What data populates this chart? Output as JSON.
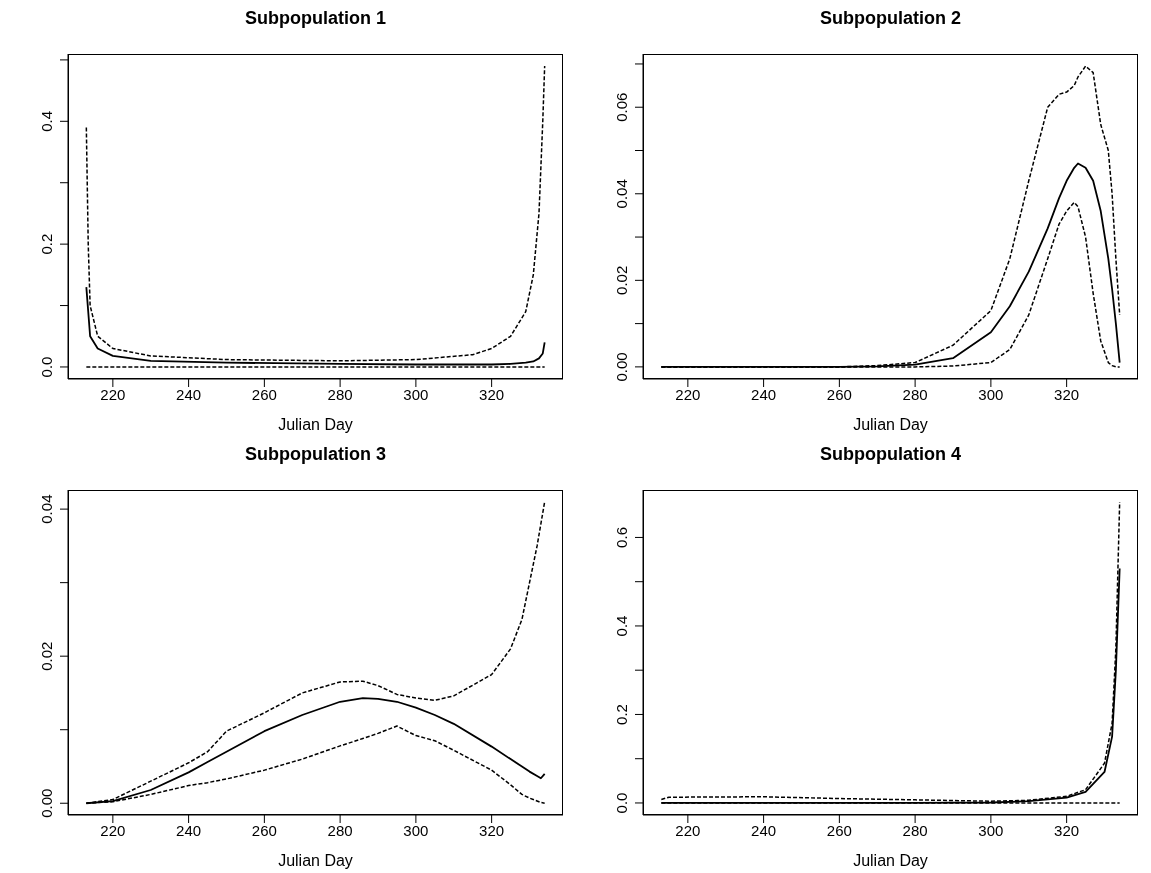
{
  "chart_data": [
    {
      "type": "line",
      "title": "Subpopulation 1",
      "xlabel": "Julian Day",
      "xlim": [
        208.16,
        338.84
      ],
      "xticks": [
        220,
        240,
        260,
        280,
        300,
        320
      ],
      "ylim": [
        -0.0196,
        0.5096
      ],
      "yticks": [
        {
          "value": 0,
          "label": "0.0"
        },
        {
          "value": 0.1,
          "label": null
        },
        {
          "value": 0.2,
          "label": "0.2"
        },
        {
          "value": 0.3,
          "label": null
        },
        {
          "value": 0.4,
          "label": "0.4"
        },
        {
          "value": 0.5,
          "label": null
        }
      ],
      "x": [
        213,
        213.5,
        214,
        216,
        220,
        230,
        250,
        280,
        300,
        315,
        320,
        325,
        329,
        331,
        332.5,
        333.5,
        334
      ],
      "series": [
        {
          "color": "#000000",
          "line_style": "solid",
          "values": [
            0.13,
            0.09,
            0.05,
            0.03,
            0.018,
            0.01,
            0.007,
            0.005,
            0.004,
            0.004,
            0.004,
            0.005,
            0.007,
            0.009,
            0.014,
            0.022,
            0.04
          ]
        },
        {
          "color": "#000000",
          "line_style": "dashed",
          "values": [
            0,
            0,
            0,
            0,
            0,
            0,
            0,
            0,
            0,
            0,
            0,
            0,
            0,
            0,
            0,
            0,
            0
          ]
        },
        {
          "color": "#000000",
          "line_style": "dashed",
          "values": [
            0.39,
            0.2,
            0.1,
            0.05,
            0.03,
            0.018,
            0.012,
            0.01,
            0.012,
            0.02,
            0.03,
            0.05,
            0.09,
            0.15,
            0.25,
            0.4,
            0.49
          ]
        }
      ]
    },
    {
      "type": "line",
      "title": "Subpopulation 2",
      "xlabel": "Julian Day",
      "xlim": [
        208.16,
        338.84
      ],
      "xticks": [
        220,
        240,
        260,
        280,
        300,
        320
      ],
      "ylim": [
        -0.0028,
        0.0723
      ],
      "yticks": [
        {
          "value": 0,
          "label": "0.00"
        },
        {
          "value": 0.01,
          "label": null
        },
        {
          "value": 0.02,
          "label": "0.02"
        },
        {
          "value": 0.03,
          "label": null
        },
        {
          "value": 0.04,
          "label": "0.04"
        },
        {
          "value": 0.05,
          "label": null
        },
        {
          "value": 0.06,
          "label": "0.06"
        },
        {
          "value": 0.07,
          "label": null
        }
      ],
      "x": [
        213,
        260,
        270,
        280,
        290,
        300,
        305,
        310,
        315,
        318,
        320,
        322,
        323,
        325,
        327,
        329,
        331,
        332,
        333,
        334
      ],
      "series": [
        {
          "color": "#000000",
          "line_style": "solid",
          "values": [
            0,
            0,
            0.0001,
            0.0005,
            0.002,
            0.008,
            0.014,
            0.022,
            0.032,
            0.039,
            0.043,
            0.046,
            0.047,
            0.046,
            0.043,
            0.036,
            0.025,
            0.018,
            0.01,
            0.001
          ]
        },
        {
          "color": "#000000",
          "line_style": "dashed",
          "values": [
            0,
            0,
            0,
            0,
            0.0002,
            0.001,
            0.004,
            0.012,
            0.025,
            0.033,
            0.036,
            0.038,
            0.037,
            0.03,
            0.017,
            0.006,
            0.001,
            0.0003,
            0,
            0
          ]
        },
        {
          "color": "#000000",
          "line_style": "dashed",
          "values": [
            0,
            0,
            0.0003,
            0.001,
            0.005,
            0.013,
            0.025,
            0.043,
            0.06,
            0.063,
            0.0635,
            0.065,
            0.067,
            0.0695,
            0.068,
            0.056,
            0.05,
            0.04,
            0.025,
            0.012
          ]
        }
      ]
    },
    {
      "type": "line",
      "title": "Subpopulation 3",
      "xlabel": "Julian Day",
      "xlim": [
        208.16,
        338.84
      ],
      "xticks": [
        220,
        240,
        260,
        280,
        300,
        320
      ],
      "ylim": [
        -0.0016,
        0.0426
      ],
      "yticks": [
        {
          "value": 0,
          "label": "0.00"
        },
        {
          "value": 0.01,
          "label": null
        },
        {
          "value": 0.02,
          "label": "0.02"
        },
        {
          "value": 0.03,
          "label": null
        },
        {
          "value": 0.04,
          "label": "0.04"
        }
      ],
      "x": [
        213,
        220,
        230,
        240,
        245,
        250,
        260,
        270,
        280,
        286,
        290,
        295,
        300,
        305,
        310,
        320,
        325,
        328,
        330,
        332,
        333,
        334
      ],
      "series": [
        {
          "color": "#000000",
          "line_style": "solid",
          "values": [
            0,
            0.0003,
            0.0018,
            0.0042,
            0.0056,
            0.007,
            0.0098,
            0.012,
            0.0138,
            0.0143,
            0.0142,
            0.0138,
            0.013,
            0.012,
            0.0108,
            0.0077,
            0.006,
            0.005,
            0.0043,
            0.0037,
            0.0034,
            0.004
          ]
        },
        {
          "color": "#000000",
          "line_style": "dashed",
          "values": [
            0,
            0.0002,
            0.0012,
            0.0024,
            0.0028,
            0.0033,
            0.0045,
            0.006,
            0.0078,
            0.0088,
            0.0095,
            0.0105,
            0.0092,
            0.0085,
            0.0072,
            0.0045,
            0.0025,
            0.0012,
            0.0007,
            0.0003,
            0.0001,
            0
          ]
        },
        {
          "color": "#000000",
          "line_style": "dashed",
          "values": [
            0,
            0.0005,
            0.003,
            0.0055,
            0.007,
            0.0098,
            0.0123,
            0.015,
            0.0165,
            0.0166,
            0.016,
            0.0148,
            0.0143,
            0.014,
            0.0146,
            0.0175,
            0.021,
            0.025,
            0.03,
            0.035,
            0.038,
            0.041
          ]
        }
      ]
    },
    {
      "type": "line",
      "title": "Subpopulation 4",
      "xlabel": "Julian Day",
      "xlim": [
        208.16,
        338.84
      ],
      "xticks": [
        220,
        240,
        260,
        280,
        300,
        320
      ],
      "ylim": [
        -0.0272,
        0.7072
      ],
      "yticks": [
        {
          "value": 0,
          "label": "0.0"
        },
        {
          "value": 0.1,
          "label": null
        },
        {
          "value": 0.2,
          "label": "0.2"
        },
        {
          "value": 0.3,
          "label": null
        },
        {
          "value": 0.4,
          "label": "0.4"
        },
        {
          "value": 0.5,
          "label": null
        },
        {
          "value": 0.6,
          "label": "0.6"
        }
      ],
      "x": [
        213,
        215,
        240,
        260,
        280,
        300,
        310,
        320,
        325,
        330,
        332,
        333,
        334
      ],
      "series": [
        {
          "color": "#000000",
          "line_style": "solid",
          "values": [
            0,
            0,
            0,
            0,
            0,
            0.001,
            0.004,
            0.012,
            0.025,
            0.07,
            0.15,
            0.3,
            0.53
          ]
        },
        {
          "color": "#000000",
          "line_style": "dashed",
          "values": [
            0,
            0,
            0,
            0,
            0,
            0,
            0,
            0,
            0,
            0,
            0,
            0,
            0
          ]
        },
        {
          "color": "#000000",
          "line_style": "dashed",
          "values": [
            0.008,
            0.013,
            0.014,
            0.01,
            0.007,
            0.004,
            0.006,
            0.015,
            0.03,
            0.09,
            0.18,
            0.35,
            0.68
          ]
        }
      ]
    }
  ]
}
